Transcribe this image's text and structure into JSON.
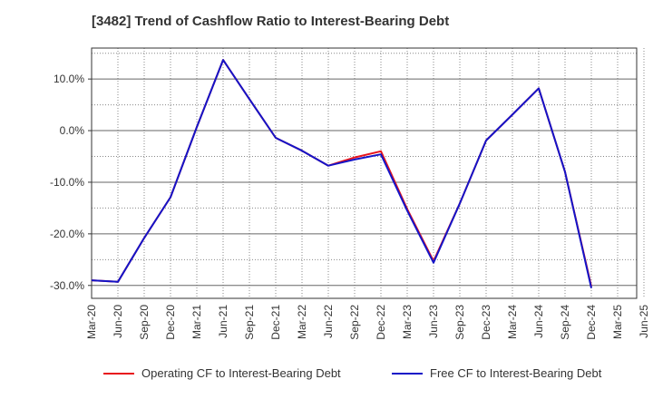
{
  "chart_data": {
    "type": "line",
    "title": "[3482]  Trend of Cashflow Ratio to Interest-Bearing Debt",
    "xlabel": "",
    "ylabel": "",
    "categories": [
      "Mar-20",
      "Jun-20",
      "Sep-20",
      "Dec-20",
      "Mar-21",
      "Jun-21",
      "Sep-21",
      "Dec-21",
      "Mar-22",
      "Jun-22",
      "Sep-22",
      "Dec-22",
      "Mar-23",
      "Jun-23",
      "Sep-23",
      "Dec-23",
      "Mar-24",
      "Jun-24",
      "Sep-24",
      "Dec-24",
      "Mar-25",
      "Jun-25"
    ],
    "y_ticks": [
      10,
      0,
      -10,
      -20,
      -30
    ],
    "y_tick_labels": [
      "10.0%",
      "0.0%",
      "-10.0%",
      "-20.0%",
      "-30.0%"
    ],
    "ylim": [
      -32.5,
      16
    ],
    "grid": true,
    "legend_position": "bottom",
    "series": [
      {
        "name": "Operating CF to Interest-Bearing Debt",
        "color": "#e8141c",
        "values": [
          -29.0,
          -29.3,
          -20.8,
          -12.9,
          0.7,
          13.7,
          6.1,
          -1.4,
          -3.9,
          -6.8,
          -5.2,
          -4.0,
          -15.2,
          -25.3,
          -14.1,
          -1.9,
          3.1,
          8.2,
          -8.0,
          -30.2,
          null,
          null
        ]
      },
      {
        "name": "Free CF to Interest-Bearing Debt",
        "color": "#1414c8",
        "values": [
          -29.0,
          -29.3,
          -20.8,
          -12.9,
          0.7,
          13.7,
          6.1,
          -1.4,
          -3.9,
          -6.8,
          -5.6,
          -4.6,
          -15.5,
          -25.6,
          -14.1,
          -1.9,
          3.1,
          8.2,
          -8.0,
          -30.5,
          null,
          null
        ]
      }
    ]
  }
}
